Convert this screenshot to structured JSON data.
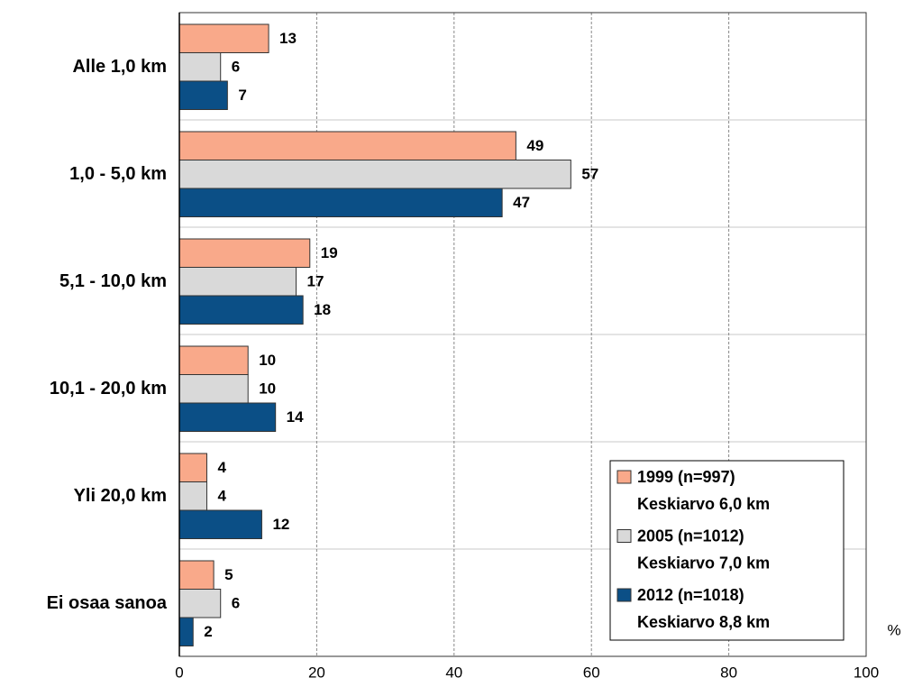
{
  "chart_data": {
    "type": "bar",
    "orientation": "horizontal",
    "categories": [
      "Alle 1,0 km",
      "1,0 - 5,0 km",
      "5,1 - 10,0 km",
      "10,1 - 20,0 km",
      "Yli 20,0 km",
      "Ei osaa sanoa"
    ],
    "series": [
      {
        "name": "1999 (n=997)",
        "average": "Keskiarvo 6,0 km",
        "color": "#f9a98a",
        "values": [
          13,
          49,
          19,
          10,
          4,
          5
        ]
      },
      {
        "name": "2005 (n=1012)",
        "average": "Keskiarvo 7,0 km",
        "color": "#d9d9d9",
        "values": [
          6,
          57,
          17,
          10,
          4,
          6
        ]
      },
      {
        "name": "2012 (n=1018)",
        "average": "Keskiarvo 8,8 km",
        "color": "#0b4f86",
        "values": [
          7,
          47,
          18,
          14,
          12,
          2
        ]
      }
    ],
    "xlabel": "%",
    "xlim": [
      0,
      100
    ],
    "xticks": [
      0,
      20,
      40,
      60,
      80,
      100
    ],
    "grid": true,
    "legend": "lower right"
  }
}
